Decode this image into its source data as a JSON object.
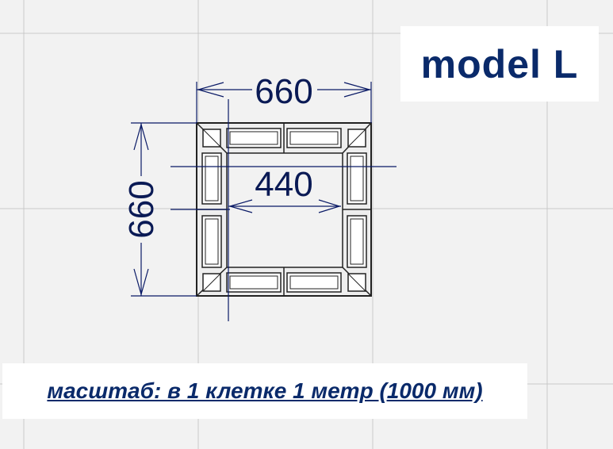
{
  "colors": {
    "grid": "#c9c9c9",
    "dimension": "#0a1a66",
    "frame": "#222222",
    "glass": "#f7f7f7",
    "text": "#0a2a6a"
  },
  "title": "model L",
  "dimensions": {
    "width": "660",
    "height": "660",
    "inner": "440"
  },
  "scale_note": "масштаб: в 1 клетке 1 метр (1000 мм)"
}
